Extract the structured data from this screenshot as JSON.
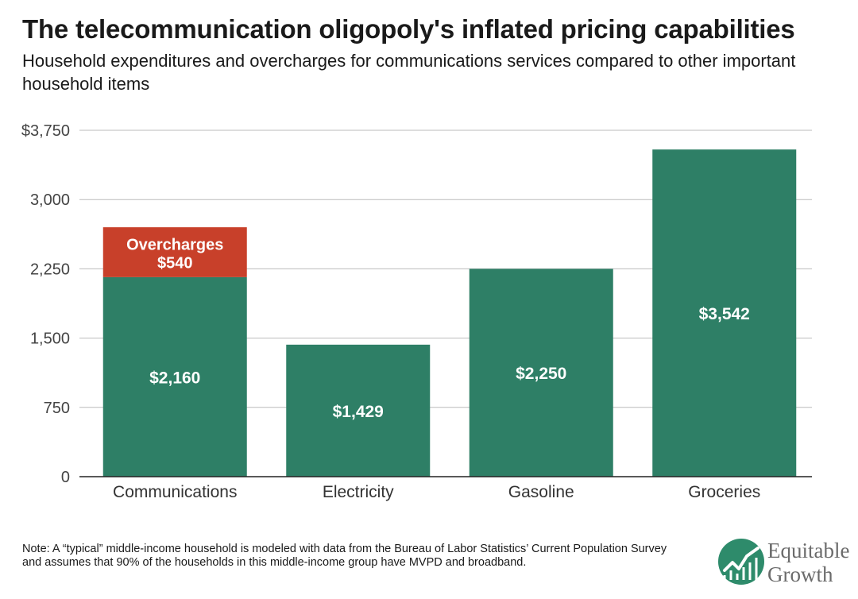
{
  "title": "The telecommunication oligopoly's inflated pricing capabilities",
  "subtitle": "Household expenditures and overcharges for communications services compared to other important household items",
  "note": "Note: A “typical” middle-income household is modeled with data from the Bureau of Labor Statistics’ Current Population Survey and assumes that 90% of the households in this middle-income group have MVPD and broadband.",
  "logo": {
    "line1": "Equitable",
    "line2": "Growth",
    "icon": "line-chart-icon"
  },
  "colors": {
    "base": "#2e7f66",
    "overcharge": "#c8402a",
    "grid": "#bbbbbb",
    "axis": "#222222",
    "label": "#ffffff",
    "tick": "#444444"
  },
  "chart_data": {
    "type": "bar",
    "stacked": true,
    "categories": [
      "Communications",
      "Electricity",
      "Gasoline",
      "Groceries"
    ],
    "series": [
      {
        "name": "",
        "values": [
          2160,
          1429,
          2250,
          3542
        ],
        "labels": [
          "$2,160",
          "$1,429",
          "$2,250",
          "$3,542"
        ]
      },
      {
        "name": "Overcharges",
        "values": [
          540,
          0,
          0,
          0
        ],
        "labels": [
          "$540",
          "",
          "",
          ""
        ]
      }
    ],
    "ylim": [
      0,
      3750
    ],
    "yticks": [
      0,
      750,
      1500,
      2250,
      3000,
      3750
    ],
    "ytick_labels": [
      "0",
      "750",
      "1,500",
      "2,250",
      "3,000",
      "$3,750"
    ],
    "grid": true,
    "legend": "none"
  }
}
